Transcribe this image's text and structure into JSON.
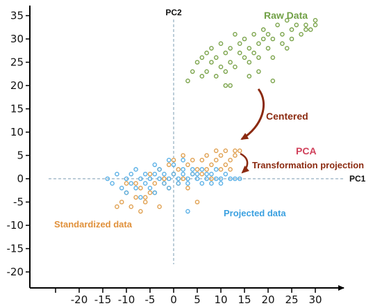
{
  "chart_data": {
    "type": "scatter",
    "title": "",
    "xlabel": "PC1",
    "ylabel": "PC2",
    "xlim": [
      -27,
      33
    ],
    "ylim": [
      -22,
      36
    ],
    "x_ticks": [
      -20,
      -15,
      -10,
      -5,
      0,
      5,
      10,
      15,
      20,
      25,
      30
    ],
    "y_ticks": [
      35,
      30,
      25,
      20,
      15,
      10,
      5,
      0,
      -5,
      -10,
      -15,
      -20
    ],
    "grid": false,
    "annotations": {
      "raw": "Raw Data",
      "centered": "Centered",
      "pca": "PCA",
      "transformation": "Transformation projection",
      "standardized": "Standardized data",
      "projected": "Projected data"
    },
    "colors": {
      "raw": "#7aa34a",
      "standardized": "#e0a050",
      "projected": "#5ab0e6",
      "arrow": "#8b2a10",
      "pca_text": "#d0405a",
      "raw_text": "#70a045",
      "standardized_text": "#e0903a",
      "projected_text": "#3aa0e0"
    },
    "series": [
      {
        "key": "raw",
        "values": [
          [
            3,
            21
          ],
          [
            4,
            23
          ],
          [
            5,
            25
          ],
          [
            6,
            22
          ],
          [
            6,
            26
          ],
          [
            7,
            23
          ],
          [
            7,
            27
          ],
          [
            8,
            25
          ],
          [
            8,
            28
          ],
          [
            9,
            22
          ],
          [
            9,
            26
          ],
          [
            10,
            24
          ],
          [
            10,
            29
          ],
          [
            11,
            23
          ],
          [
            11,
            27
          ],
          [
            11,
            20
          ],
          [
            12,
            25
          ],
          [
            12,
            28
          ],
          [
            12,
            20
          ],
          [
            13,
            31
          ],
          [
            13,
            24
          ],
          [
            14,
            27
          ],
          [
            14,
            29
          ],
          [
            15,
            26
          ],
          [
            15,
            30
          ],
          [
            16,
            28
          ],
          [
            16,
            25
          ],
          [
            17,
            31
          ],
          [
            17,
            27
          ],
          [
            18,
            29
          ],
          [
            18,
            26
          ],
          [
            19,
            30
          ],
          [
            19,
            32
          ],
          [
            20,
            28
          ],
          [
            20,
            31
          ],
          [
            21,
            21
          ],
          [
            21,
            30
          ],
          [
            22,
            33
          ],
          [
            23,
            29
          ],
          [
            23,
            31
          ],
          [
            24,
            34
          ],
          [
            24,
            28
          ],
          [
            25,
            32
          ],
          [
            25,
            30
          ],
          [
            26,
            33
          ],
          [
            27,
            31
          ],
          [
            28,
            32
          ],
          [
            28,
            33
          ],
          [
            29,
            32
          ],
          [
            30,
            34
          ],
          [
            30,
            33
          ],
          [
            21,
            26
          ],
          [
            18,
            23
          ],
          [
            16,
            22
          ]
        ]
      },
      {
        "key": "standardized",
        "values": [
          [
            -12,
            -6
          ],
          [
            -11,
            -5
          ],
          [
            -10,
            -3
          ],
          [
            -9,
            -6
          ],
          [
            -8,
            -4
          ],
          [
            -7,
            -2
          ],
          [
            -7,
            -7
          ],
          [
            -6,
            -5
          ],
          [
            -5,
            -3
          ],
          [
            -5,
            1
          ],
          [
            -4,
            -1
          ],
          [
            -3,
            -6
          ],
          [
            -3,
            2
          ],
          [
            -2,
            0
          ],
          [
            -1,
            -2
          ],
          [
            -1,
            3
          ],
          [
            0,
            1
          ],
          [
            0,
            4
          ],
          [
            1,
            2
          ],
          [
            1,
            -1
          ],
          [
            2,
            5
          ],
          [
            3,
            3
          ],
          [
            4,
            1
          ],
          [
            4,
            4
          ],
          [
            5,
            2
          ],
          [
            5,
            -5
          ],
          [
            6,
            4
          ],
          [
            7,
            2
          ],
          [
            7,
            5
          ],
          [
            8,
            3
          ],
          [
            9,
            4
          ],
          [
            9,
            6
          ],
          [
            10,
            2
          ],
          [
            10,
            5
          ],
          [
            11,
            3
          ],
          [
            11,
            6
          ],
          [
            12,
            4
          ],
          [
            13,
            6
          ],
          [
            13,
            5
          ],
          [
            14,
            6
          ],
          [
            -8,
            -1
          ],
          [
            -6,
            -4
          ],
          [
            -4,
            -3
          ],
          [
            -2,
            -1
          ],
          [
            2,
            0
          ],
          [
            6,
            1
          ],
          [
            8,
            0
          ],
          [
            12,
            2
          ],
          [
            -10,
            -1
          ],
          [
            3,
            -2
          ]
        ]
      },
      {
        "key": "projected",
        "values": [
          [
            -14,
            0
          ],
          [
            -13,
            -1
          ],
          [
            -12,
            1
          ],
          [
            -11,
            -2
          ],
          [
            -10,
            0
          ],
          [
            -10,
            -3
          ],
          [
            -9,
            1
          ],
          [
            -9,
            -1
          ],
          [
            -8,
            -2
          ],
          [
            -8,
            2
          ],
          [
            -7,
            0
          ],
          [
            -7,
            -4
          ],
          [
            -6,
            1
          ],
          [
            -6,
            -1
          ],
          [
            -5,
            0
          ],
          [
            -5,
            -2
          ],
          [
            -4,
            1
          ],
          [
            -4,
            -3
          ],
          [
            -3,
            0
          ],
          [
            -3,
            2
          ],
          [
            -2,
            -1
          ],
          [
            -2,
            1
          ],
          [
            -1,
            0
          ],
          [
            -1,
            -2
          ],
          [
            0,
            1
          ],
          [
            0,
            3
          ],
          [
            1,
            0
          ],
          [
            1,
            -1
          ],
          [
            2,
            1
          ],
          [
            2,
            2
          ],
          [
            3,
            0
          ],
          [
            3,
            -1
          ],
          [
            4,
            1
          ],
          [
            4,
            2
          ],
          [
            5,
            0
          ],
          [
            5,
            1
          ],
          [
            6,
            -1
          ],
          [
            6,
            2
          ],
          [
            7,
            0
          ],
          [
            7,
            1
          ],
          [
            8,
            1
          ],
          [
            8,
            -1
          ],
          [
            9,
            0
          ],
          [
            9,
            2
          ],
          [
            10,
            0
          ],
          [
            10,
            -1
          ],
          [
            11,
            1
          ],
          [
            12,
            0
          ],
          [
            13,
            0
          ],
          [
            14,
            0
          ],
          [
            3,
            -7
          ],
          [
            -1,
            4
          ],
          [
            -4,
            3
          ],
          [
            2,
            4
          ]
        ]
      }
    ]
  }
}
